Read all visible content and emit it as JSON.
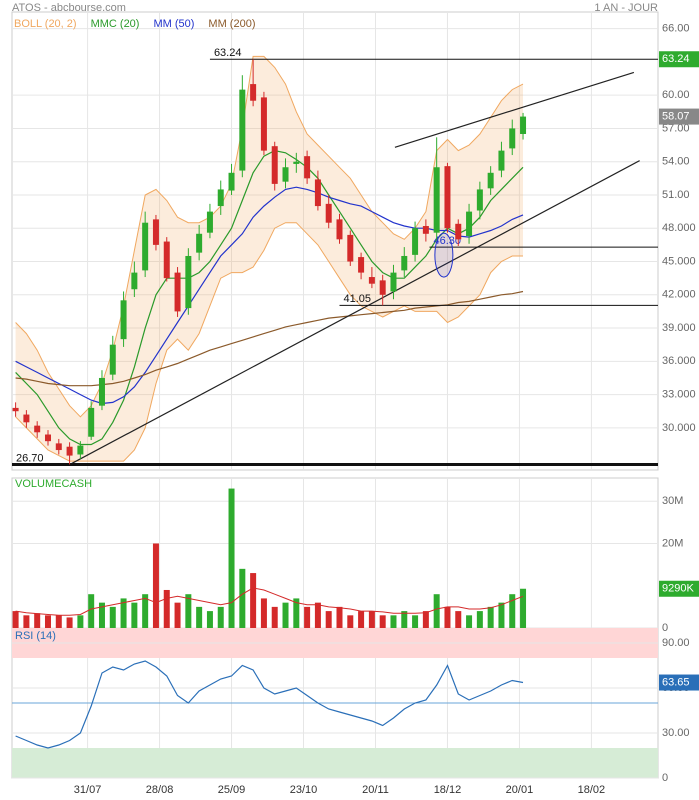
{
  "chart_data": [
    {
      "type": "candlestick",
      "title": "ATOS - abcbourse.com",
      "subtitle": "1 AN - JOUR",
      "x": [
        0,
        3,
        6,
        9,
        12,
        15,
        18,
        21,
        24,
        27,
        30,
        33,
        36,
        39,
        42,
        45,
        48,
        51,
        54,
        57,
        60,
        63,
        66,
        69,
        72,
        75,
        78,
        81,
        84,
        87,
        90,
        93,
        96,
        99,
        102,
        105,
        108,
        111,
        114,
        117,
        120,
        123,
        126,
        129,
        132,
        135,
        138,
        141
      ],
      "open": [
        31.8,
        31.2,
        30.2,
        29.4,
        28.6,
        28.3,
        27.6,
        29.2,
        32.0,
        34.8,
        38.0,
        42.5,
        44.2,
        48.8,
        46.8,
        44.0,
        40.8,
        45.8,
        47.6,
        50.0,
        51.4,
        53.2,
        61.0,
        59.8,
        55.4,
        52.2,
        53.8,
        54.5,
        52.4,
        50.2,
        48.8,
        47.4,
        45.4,
        43.6,
        43.3,
        42.3,
        44.2,
        45.6,
        48.2,
        47.6,
        53.6,
        48.4,
        47.3,
        49.6,
        51.6,
        53.2,
        55.2,
        56.5
      ],
      "high": [
        32.3,
        31.6,
        30.6,
        29.8,
        29.0,
        28.7,
        28.8,
        32.4,
        35.2,
        38.3,
        42.3,
        45.0,
        49.5,
        49.2,
        47.2,
        44.5,
        46.2,
        48.3,
        50.2,
        52.3,
        53.8,
        61.8,
        63.24,
        60.3,
        55.8,
        54.3,
        54.8,
        55.0,
        53.2,
        51.0,
        49.3,
        47.8,
        45.8,
        44.5,
        43.8,
        44.7,
        46.3,
        48.6,
        48.8,
        56.2,
        53.9,
        48.8,
        50.2,
        52.2,
        53.6,
        55.8,
        57.8,
        58.4
      ],
      "low": [
        31.0,
        30.0,
        29.1,
        28.4,
        27.6,
        26.7,
        27.2,
        28.9,
        31.6,
        34.3,
        37.3,
        41.8,
        43.6,
        46.0,
        43.2,
        40.0,
        40.2,
        45.1,
        47.1,
        49.2,
        51.0,
        52.6,
        59.0,
        54.6,
        51.4,
        51.6,
        53.0,
        52.0,
        49.6,
        48.0,
        46.6,
        44.6,
        43.4,
        42.6,
        41.05,
        41.6,
        43.6,
        45.0,
        46.8,
        47.0,
        47.6,
        46.4,
        46.6,
        48.8,
        51.0,
        52.6,
        54.6,
        56.0
      ],
      "close": [
        31.5,
        30.5,
        29.6,
        28.8,
        28.0,
        27.5,
        28.4,
        31.8,
        34.5,
        37.5,
        41.5,
        44,
        48.5,
        46.5,
        43.5,
        40.5,
        45.5,
        47.5,
        49.5,
        51.5,
        53,
        60.5,
        59.5,
        55,
        52,
        53.5,
        54,
        52.5,
        50,
        48.5,
        47,
        45,
        44,
        43,
        42,
        44,
        45.5,
        48,
        47.5,
        53.5,
        48,
        47,
        49.5,
        51.5,
        53,
        55,
        57,
        58.07
      ],
      "up_color": "#2eab2e",
      "down_color": "#d42a2a",
      "bollinger": {
        "name": "BOLL (20, 2)",
        "color": "#f0a860",
        "upper": [
          39.5,
          38.5,
          37,
          35,
          33.5,
          32,
          31,
          32,
          34,
          37,
          41,
          46,
          51,
          51.5,
          50.5,
          49,
          48.5,
          48.5,
          49,
          50,
          52,
          57,
          63.5,
          63.5,
          62.5,
          61,
          58.5,
          56.5,
          55.5,
          54.5,
          53.5,
          52.5,
          51,
          49.5,
          48.5,
          47.5,
          47,
          48,
          49.5,
          55,
          56,
          55,
          55.5,
          56.5,
          58,
          59.5,
          60.5,
          61
        ],
        "lower": [
          31,
          30,
          29,
          28,
          27.5,
          27,
          27,
          27,
          27,
          27,
          27,
          28,
          30,
          34,
          37,
          38,
          37,
          38.5,
          41,
          43.5,
          44,
          44,
          44.5,
          46,
          48,
          48.5,
          48.5,
          47.5,
          46.5,
          45,
          43.5,
          42,
          41,
          40.5,
          40,
          40.5,
          41,
          40.5,
          40.5,
          40.5,
          39.5,
          40,
          41,
          42,
          44,
          45,
          45.5,
          45.5
        ]
      },
      "series": [
        {
          "name": "MMC (20)",
          "color": "#2a9a2a",
          "values": [
            35,
            34,
            33,
            31.5,
            30,
            29,
            28.5,
            28.5,
            29,
            30.5,
            32.5,
            35.5,
            39,
            42,
            43.5,
            43.5,
            43.5,
            44,
            45,
            46.5,
            48,
            50.5,
            53,
            54.5,
            55,
            54.8,
            54.2,
            53.5,
            52.5,
            51,
            49.5,
            48,
            46.5,
            45,
            44,
            43.5,
            43.5,
            44.5,
            45.5,
            47,
            48,
            47.5,
            48,
            49,
            50.5,
            51.5,
            52.5,
            53.5
          ]
        },
        {
          "name": "MM (50)",
          "color": "#2233cc",
          "values": [
            36,
            35.5,
            35,
            34.5,
            34,
            33.5,
            33,
            32.5,
            32.2,
            32.3,
            32.8,
            33.7,
            35,
            36.5,
            38,
            39.5,
            41,
            42.5,
            44,
            45.5,
            46.5,
            47.5,
            49,
            50,
            50.8,
            51.5,
            51.7,
            51.5,
            51.2,
            50.8,
            50.5,
            50.2,
            50,
            49.5,
            49,
            48.5,
            48.2,
            48,
            48,
            47.8,
            47.8,
            47.3,
            47.2,
            47.5,
            47.8,
            48.2,
            48.8,
            49.2
          ]
        },
        {
          "name": "MM (200)",
          "color": "#8b5a2b",
          "values": [
            34.5,
            34.4,
            34.2,
            34,
            33.9,
            33.8,
            33.8,
            33.8,
            33.9,
            34,
            34.2,
            34.5,
            34.8,
            35.2,
            35.5,
            35.8,
            36.2,
            36.6,
            37,
            37.3,
            37.6,
            37.9,
            38.2,
            38.5,
            38.8,
            39.1,
            39.3,
            39.5,
            39.7,
            39.9,
            40,
            40.1,
            40.2,
            40.3,
            40.4,
            40.5,
            40.6,
            40.8,
            40.9,
            41,
            41.1,
            41.3,
            41.4,
            41.6,
            41.8,
            42,
            42.1,
            42.3
          ]
        }
      ],
      "levels": [
        {
          "value": 63.24,
          "label": "63.24",
          "x0": 54
        },
        {
          "value": 26.7,
          "label": "26.70",
          "x0": -1
        },
        {
          "value": 41.05,
          "label": "41.05",
          "x0": 90
        },
        {
          "value": 46.3,
          "label": "46.30",
          "x0": 115
        }
      ],
      "trendlines": [
        {
          "x": [
            15.1,
            173.4
          ],
          "y": [
            26.7,
            54.1
          ]
        },
        {
          "x": [
            105.4,
            171.8
          ],
          "y": [
            55.3,
            62.05
          ]
        }
      ],
      "xlim": [
        -1,
        178.5
      ],
      "xticks": [
        {
          "value": 20,
          "label": "31/07"
        },
        {
          "value": 40,
          "label": "28/08"
        },
        {
          "value": 60,
          "label": "25/09"
        },
        {
          "value": 80,
          "label": "23/10"
        },
        {
          "value": 100,
          "label": "20/11"
        },
        {
          "value": 120,
          "label": "18/12"
        },
        {
          "value": 140,
          "label": "20/01"
        },
        {
          "value": 160,
          "label": "18/02"
        }
      ],
      "ylim": [
        26.2,
        67.5
      ],
      "yticks": [
        {
          "value": 66,
          "label": "66.00"
        },
        {
          "value": 60,
          "label": "60.00"
        },
        {
          "value": 57,
          "label": "57.00"
        },
        {
          "value": 54,
          "label": "54.00"
        },
        {
          "value": 51,
          "label": "51.00"
        },
        {
          "value": 48,
          "label": "48.000"
        },
        {
          "value": 45,
          "label": "45.000"
        },
        {
          "value": 42,
          "label": "42.000"
        },
        {
          "value": 39,
          "label": "39.000"
        },
        {
          "value": 36,
          "label": "36.000"
        },
        {
          "value": 33,
          "label": "33.000"
        },
        {
          "value": 30,
          "label": "30.000"
        }
      ]
    },
    {
      "type": "bar",
      "title": "VOLUMECASH",
      "values": [
        4,
        3,
        3.5,
        3,
        3,
        2.5,
        3,
        8,
        6,
        5,
        7,
        6,
        8,
        20,
        9,
        6,
        8,
        5,
        4,
        5,
        33,
        14,
        13,
        7,
        5,
        6,
        7,
        5,
        6,
        4,
        5,
        3,
        4,
        4,
        3,
        3,
        4,
        3,
        4,
        8,
        5,
        4,
        3,
        4,
        5,
        6,
        8,
        9.29
      ],
      "value_labels": [
        null,
        null,
        null,
        null,
        null,
        null,
        null,
        null,
        null,
        null,
        null,
        null,
        null,
        null,
        null,
        null,
        null,
        null,
        null,
        null,
        null,
        null,
        null,
        null,
        null,
        null,
        null,
        null,
        null,
        null,
        null,
        null,
        null,
        null,
        null,
        null,
        null,
        null,
        null,
        null,
        null,
        null,
        null,
        null,
        null,
        null,
        null,
        "9290K"
      ],
      "series": [
        {
          "color": "#d42a2a",
          "values": [
            4,
            3.6,
            3.4,
            3.2,
            3,
            3,
            3.2,
            4.5,
            5,
            5.5,
            6,
            6.5,
            7,
            6,
            7,
            7.5,
            7,
            6.5,
            6,
            5.5,
            6,
            8,
            9.5,
            9,
            8,
            7,
            6,
            5.5,
            5.5,
            5,
            4.8,
            4.5,
            4,
            4,
            3.8,
            3.5,
            3.5,
            3.5,
            3.6,
            4.5,
            5,
            5,
            4.5,
            4.5,
            4.8,
            5.5,
            6.5,
            7.5
          ]
        }
      ],
      "ylim": [
        0,
        35.5
      ],
      "yticks": [
        0,
        {
          "value": 20,
          "label": "20M"
        },
        {
          "value": 30,
          "label": "30M"
        }
      ]
    },
    {
      "type": "line",
      "title": "RSI (14)",
      "color": "#2a6fb8",
      "values": [
        28,
        25,
        22,
        20,
        22,
        25,
        30,
        48,
        70,
        74,
        72,
        76,
        78,
        74,
        68,
        55,
        50,
        58,
        62,
        66,
        68,
        75,
        72,
        60,
        56,
        58,
        60,
        55,
        50,
        46,
        44,
        42,
        40,
        38,
        35,
        40,
        46,
        50,
        52,
        62,
        75,
        56,
        52,
        55,
        58,
        62,
        65,
        63.65
      ],
      "bands": [
        {
          "from": 80,
          "to": 100,
          "color": "#ffd6d6"
        },
        {
          "from": 0,
          "to": 20,
          "color": "#d6ecd6"
        }
      ],
      "reference": 50,
      "ylim": [
        0,
        100
      ],
      "yticks": [
        0,
        {
          "value": 30,
          "label": "30.00"
        },
        {
          "value": 60,
          "label": "60.00"
        },
        {
          "value": 90,
          "label": "90.00"
        }
      ]
    }
  ]
}
